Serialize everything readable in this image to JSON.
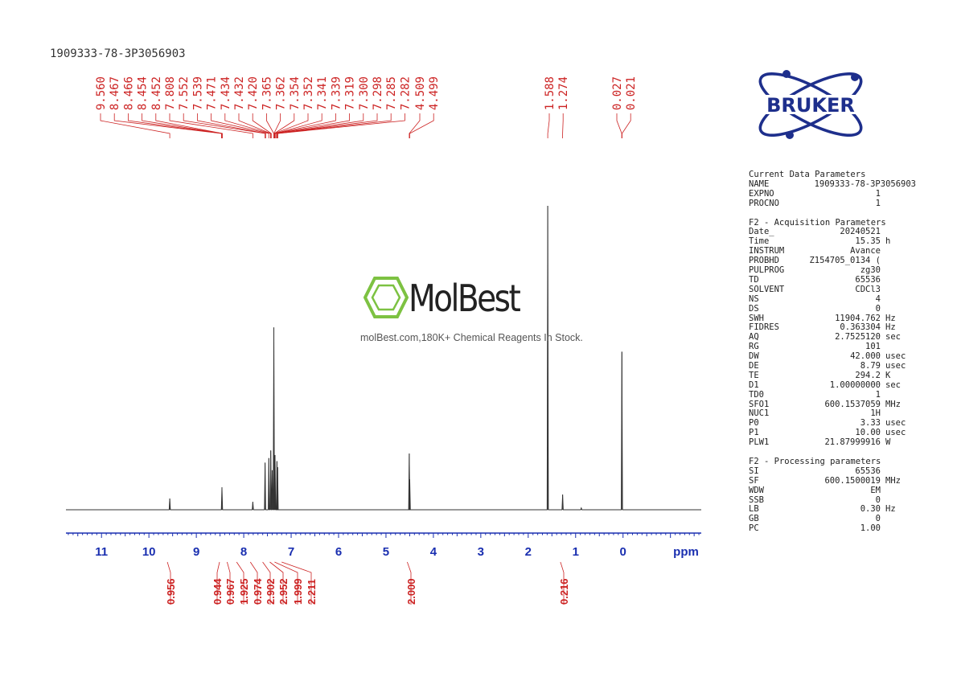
{
  "sample_id": "1909333-78-3P3056903",
  "logo_text": "BRUKER",
  "watermark": {
    "name": "MolBest",
    "tagline": "molBest.com,180K+ Chemical Reagents In Stock."
  },
  "colors": {
    "peak_label": "#cc2222",
    "axis": "#1a2fb0",
    "spectrum": "#333333",
    "logo": "#1e2f8c"
  },
  "parameters": [
    {
      "heading": "Current Data Parameters",
      "rows": [
        {
          "key": "NAME",
          "value": "1909333-78-3P3056903",
          "unit": ""
        },
        {
          "key": "EXPNO",
          "value": "1",
          "unit": ""
        },
        {
          "key": "PROCNO",
          "value": "1",
          "unit": ""
        }
      ]
    },
    {
      "heading": "F2 - Acquisition Parameters",
      "rows": [
        {
          "key": "Date_",
          "value": "20240521",
          "unit": ""
        },
        {
          "key": "Time",
          "value": "15.35",
          "unit": "h"
        },
        {
          "key": "INSTRUM",
          "value": "Avance",
          "unit": ""
        },
        {
          "key": "PROBHD",
          "value": "Z154705_0134 (",
          "unit": ""
        },
        {
          "key": "PULPROG",
          "value": "zg30",
          "unit": ""
        },
        {
          "key": "TD",
          "value": "65536",
          "unit": ""
        },
        {
          "key": "SOLVENT",
          "value": "CDCl3",
          "unit": ""
        },
        {
          "key": "NS",
          "value": "4",
          "unit": ""
        },
        {
          "key": "DS",
          "value": "0",
          "unit": ""
        },
        {
          "key": "SWH",
          "value": "11904.762",
          "unit": "Hz"
        },
        {
          "key": "FIDRES",
          "value": "0.363304",
          "unit": "Hz"
        },
        {
          "key": "AQ",
          "value": "2.7525120",
          "unit": "sec"
        },
        {
          "key": "RG",
          "value": "101",
          "unit": ""
        },
        {
          "key": "DW",
          "value": "42.000",
          "unit": "usec"
        },
        {
          "key": "DE",
          "value": "8.79",
          "unit": "usec"
        },
        {
          "key": "TE",
          "value": "294.2",
          "unit": "K"
        },
        {
          "key": "D1",
          "value": "1.00000000",
          "unit": "sec"
        },
        {
          "key": "TD0",
          "value": "1",
          "unit": ""
        },
        {
          "key": "SFO1",
          "value": "600.1537059",
          "unit": "MHz"
        },
        {
          "key": "NUC1",
          "value": "1H",
          "unit": ""
        },
        {
          "key": "P0",
          "value": "3.33",
          "unit": "usec"
        },
        {
          "key": "P1",
          "value": "10.00",
          "unit": "usec"
        },
        {
          "key": "PLW1",
          "value": "21.87999916",
          "unit": "W"
        }
      ]
    },
    {
      "heading": "F2 - Processing parameters",
      "rows": [
        {
          "key": "SI",
          "value": "65536",
          "unit": ""
        },
        {
          "key": "SF",
          "value": "600.1500019",
          "unit": "MHz"
        },
        {
          "key": "WDW",
          "value": "EM",
          "unit": ""
        },
        {
          "key": "SSB",
          "value": "0",
          "unit": ""
        },
        {
          "key": "LB",
          "value": "0.30",
          "unit": "Hz"
        },
        {
          "key": "GB",
          "value": "0",
          "unit": ""
        },
        {
          "key": "PC",
          "value": "1.00",
          "unit": ""
        }
      ]
    }
  ],
  "chart_data": {
    "type": "line",
    "title": "",
    "xlabel": "ppm",
    "ylabel": "",
    "xlim": [
      11.75,
      -1.65
    ],
    "x_reversed": true,
    "x_ticks": [
      11,
      10,
      9,
      8,
      7,
      6,
      5,
      4,
      3,
      2,
      1,
      0
    ],
    "peak_labels": [
      "9.560",
      "8.467",
      "8.466",
      "8.454",
      "8.452",
      "7.808",
      "7.552",
      "7.539",
      "7.471",
      "7.434",
      "7.432",
      "7.420",
      "7.365",
      "7.362",
      "7.354",
      "7.352",
      "7.341",
      "7.339",
      "7.319",
      "7.300",
      "7.298",
      "7.285",
      "7.282",
      "4.509",
      "4.499",
      "1.588",
      "1.274",
      "0.027",
      "0.021"
    ],
    "peaks": [
      {
        "ppm": 9.56,
        "height": 0.037
      },
      {
        "ppm": 8.46,
        "height": 0.074
      },
      {
        "ppm": 7.808,
        "height": 0.026
      },
      {
        "ppm": 7.55,
        "height": 0.155
      },
      {
        "ppm": 7.47,
        "height": 0.17
      },
      {
        "ppm": 7.43,
        "height": 0.195
      },
      {
        "ppm": 7.4,
        "height": 0.13
      },
      {
        "ppm": 7.365,
        "height": 0.6
      },
      {
        "ppm": 7.34,
        "height": 0.18
      },
      {
        "ppm": 7.3,
        "height": 0.16
      },
      {
        "ppm": 7.285,
        "height": 0.14
      },
      {
        "ppm": 4.509,
        "height": 0.185
      },
      {
        "ppm": 4.499,
        "height": 0.1
      },
      {
        "ppm": 1.588,
        "height": 1.0
      },
      {
        "ppm": 1.274,
        "height": 0.05
      },
      {
        "ppm": 0.88,
        "height": 0.006
      },
      {
        "ppm": 0.024,
        "height": 0.52
      }
    ],
    "integrals": [
      {
        "ppm": 9.56,
        "value": "0.956"
      },
      {
        "ppm": 8.46,
        "value": "0.944"
      },
      {
        "ppm": 8.3,
        "value": "0.967"
      },
      {
        "ppm": 8.1,
        "value": "1.925"
      },
      {
        "ppm": 7.81,
        "value": "0.974"
      },
      {
        "ppm": 7.55,
        "value": "2.902"
      },
      {
        "ppm": 7.4,
        "value": "2.952"
      },
      {
        "ppm": 7.3,
        "value": "1.999"
      },
      {
        "ppm": 7.15,
        "value": "2.211"
      },
      {
        "ppm": 4.5,
        "value": "2.000"
      },
      {
        "ppm": 1.27,
        "value": "0.216"
      }
    ]
  }
}
